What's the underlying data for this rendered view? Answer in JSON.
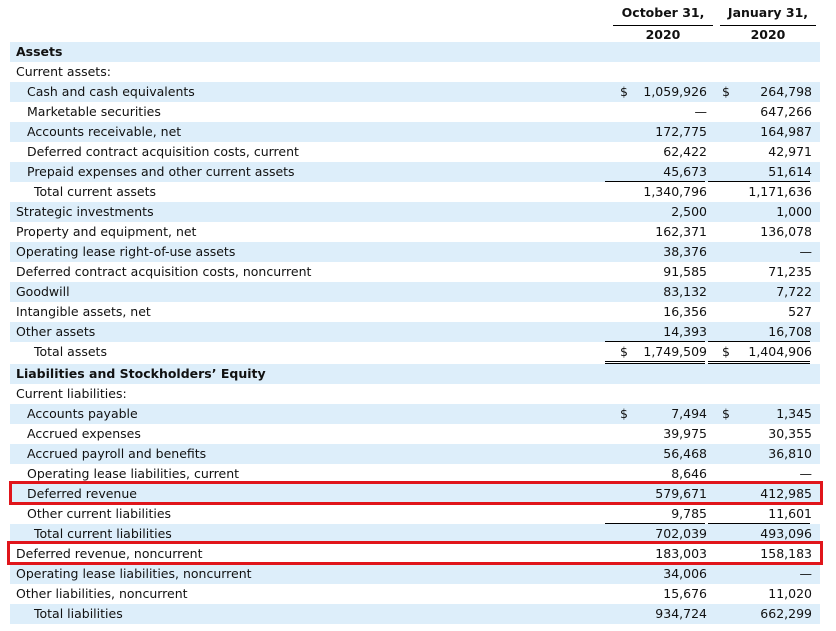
{
  "columns": {
    "a": {
      "line1": "October 31,",
      "line2": "2020"
    },
    "b": {
      "line1": "January 31,",
      "line2": "2020"
    }
  },
  "rows": [
    {
      "label": "Assets",
      "a": "",
      "b": "",
      "style": "bold",
      "indent": 0,
      "shade": true
    },
    {
      "label": "Current assets:",
      "a": "",
      "b": "",
      "indent": 0,
      "shade": false
    },
    {
      "label": "Cash and cash equivalents",
      "a": "1,059,926",
      "b": "264,798",
      "da": "$",
      "db": "$",
      "indent": 1,
      "shade": true
    },
    {
      "label": "Marketable securities",
      "a": "—",
      "b": "647,266",
      "indent": 1,
      "shade": false
    },
    {
      "label": "Accounts receivable, net",
      "a": "172,775",
      "b": "164,987",
      "indent": 1,
      "shade": true
    },
    {
      "label": "Deferred contract acquisition costs, current",
      "a": "62,422",
      "b": "42,971",
      "indent": 1,
      "shade": false
    },
    {
      "label": "Prepaid expenses and other current assets",
      "a": "45,673",
      "b": "51,614",
      "indent": 1,
      "shade": true
    },
    {
      "label": "Total current assets",
      "a": "1,340,796",
      "b": "1,171,636",
      "indent": 2,
      "shade": false
    },
    {
      "label": "Strategic investments",
      "a": "2,500",
      "b": "1,000",
      "indent": 0,
      "shade": true
    },
    {
      "label": "Property and equipment, net",
      "a": "162,371",
      "b": "136,078",
      "indent": 0,
      "shade": false
    },
    {
      "label": "Operating lease right-of-use assets",
      "a": "38,376",
      "b": "—",
      "indent": 0,
      "shade": true
    },
    {
      "label": "Deferred contract acquisition costs, noncurrent",
      "a": "91,585",
      "b": "71,235",
      "indent": 0,
      "shade": false
    },
    {
      "label": "Goodwill",
      "a": "83,132",
      "b": "7,722",
      "indent": 0,
      "shade": true
    },
    {
      "label": "Intangible assets, net",
      "a": "16,356",
      "b": "527",
      "indent": 0,
      "shade": false
    },
    {
      "label": "Other assets",
      "a": "14,393",
      "b": "16,708",
      "indent": 0,
      "shade": true
    },
    {
      "label": "Total assets",
      "a": "1,749,509",
      "b": "1,404,906",
      "da": "$",
      "db": "$",
      "indent": 2,
      "shade": false
    },
    {
      "label": "Liabilities and Stockholders’ Equity",
      "a": "",
      "b": "",
      "style": "bold",
      "indent": 0,
      "shade": true
    },
    {
      "label": "Current liabilities:",
      "a": "",
      "b": "",
      "indent": 0,
      "shade": false
    },
    {
      "label": "Accounts payable",
      "a": "7,494",
      "b": "1,345",
      "da": "$",
      "db": "$",
      "indent": 1,
      "shade": true
    },
    {
      "label": "Accrued expenses",
      "a": "39,975",
      "b": "30,355",
      "indent": 1,
      "shade": false
    },
    {
      "label": "Accrued payroll and benefits",
      "a": "56,468",
      "b": "36,810",
      "indent": 1,
      "shade": true
    },
    {
      "label": "Operating lease liabilities, current",
      "a": "8,646",
      "b": "—",
      "indent": 1,
      "shade": false
    },
    {
      "label": "Deferred revenue",
      "a": "579,671",
      "b": "412,985",
      "indent": 1,
      "shade": true
    },
    {
      "label": "Other current liabilities",
      "a": "9,785",
      "b": "11,601",
      "indent": 1,
      "shade": false
    },
    {
      "label": "Total current liabilities",
      "a": "702,039",
      "b": "493,096",
      "indent": 2,
      "shade": true
    },
    {
      "label": "Deferred revenue, noncurrent",
      "a": "183,003",
      "b": "158,183",
      "indent": 0,
      "shade": false
    },
    {
      "label": "Operating lease liabilities, noncurrent",
      "a": "34,006",
      "b": "—",
      "indent": 0,
      "shade": true
    },
    {
      "label": "Other liabilities, noncurrent",
      "a": "15,676",
      "b": "11,020",
      "indent": 0,
      "shade": false
    },
    {
      "label": "Total liabilities",
      "a": "934,724",
      "b": "662,299",
      "indent": 2,
      "shade": true
    }
  ],
  "colors": {
    "shade": "#ddeefa",
    "highlight": "#e0151b"
  }
}
